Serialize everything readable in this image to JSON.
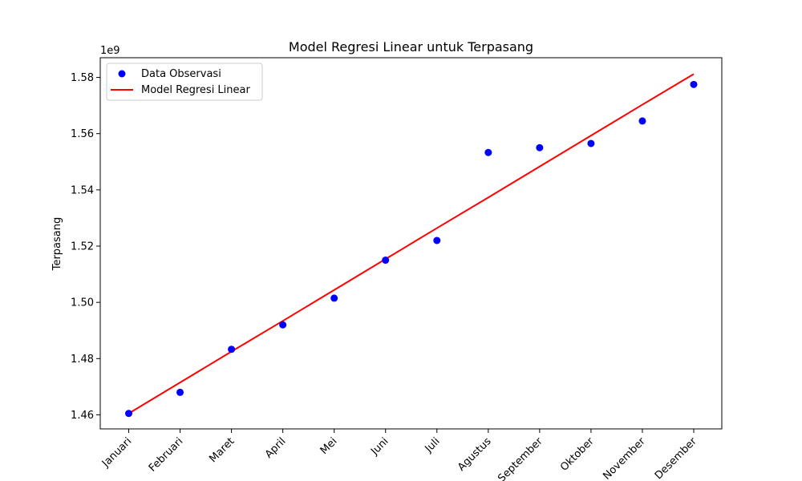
{
  "chart_data": {
    "type": "scatter",
    "title": "Model Regresi Linear untuk Terpasang",
    "xlabel": "",
    "ylabel": "Terpasang",
    "y_offset_label": "1e9",
    "y_multiplier": 1000000000,
    "categories": [
      "Januari",
      "Februari",
      "Maret",
      "April",
      "Mei",
      "Juni",
      "Juli",
      "Agustus",
      "September",
      "Oktober",
      "November",
      "Desember"
    ],
    "ylim": [
      1.455,
      1.587
    ],
    "yticks": [
      1.46,
      1.48,
      1.5,
      1.52,
      1.54,
      1.56,
      1.58
    ],
    "ytick_labels": [
      "1.46",
      "1.48",
      "1.50",
      "1.52",
      "1.54",
      "1.56",
      "1.58"
    ],
    "grid": false,
    "legend_position": "top-left",
    "series": [
      {
        "name": "Data Observasi",
        "kind": "scatter",
        "color": "#0000ff",
        "values": [
          1.4605,
          1.468,
          1.4833,
          1.492,
          1.5015,
          1.515,
          1.522,
          1.5533,
          1.555,
          1.5565,
          1.5645,
          1.5775
        ]
      },
      {
        "name": "Model Regresi Linear",
        "kind": "line",
        "color": "#ff0000",
        "values": [
          1.4605,
          1.4715,
          1.4825,
          1.4934,
          1.5044,
          1.5154,
          1.5264,
          1.5373,
          1.5483,
          1.5593,
          1.5703,
          1.5812
        ]
      }
    ]
  }
}
